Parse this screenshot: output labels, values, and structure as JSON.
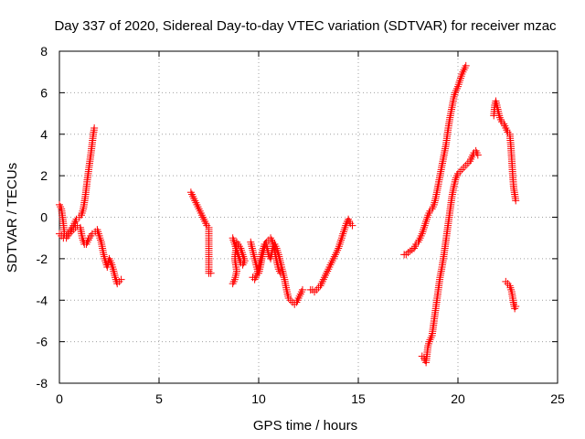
{
  "chart_data": {
    "type": "scatter",
    "title": "Day 337 of 2020, Sidereal Day-to-day VTEC variation (SDTVAR) for receiver mzac",
    "xlabel": "GPS time / hours",
    "ylabel": "SDTVAR / TECUs",
    "xlim": [
      0,
      25
    ],
    "ylim": [
      -8,
      8
    ],
    "xticks": [
      "0",
      "5",
      "10",
      "15",
      "20",
      "25"
    ],
    "yticks": [
      "-8",
      "-6",
      "-4",
      "-2",
      "0",
      "2",
      "4",
      "6",
      "8"
    ],
    "grid": true,
    "marker": "+",
    "color": "#ff0000",
    "series": [
      {
        "name": "seg1a",
        "points": [
          [
            0.0,
            0.6
          ],
          [
            0.1,
            0.4
          ],
          [
            0.2,
            -0.3
          ],
          [
            0.25,
            -0.8
          ],
          [
            0.35,
            -0.9
          ],
          [
            0.5,
            -0.7
          ],
          [
            0.7,
            -0.4
          ],
          [
            0.85,
            -0.1
          ],
          [
            1.0,
            0.0
          ],
          [
            1.1,
            0.1
          ],
          [
            1.2,
            0.4
          ],
          [
            1.3,
            1.0
          ],
          [
            1.4,
            1.8
          ],
          [
            1.5,
            2.5
          ],
          [
            1.6,
            3.2
          ],
          [
            1.7,
            4.0
          ],
          [
            1.75,
            4.3
          ]
        ]
      },
      {
        "name": "seg1b",
        "points": [
          [
            0.0,
            -0.8
          ],
          [
            0.1,
            -0.9
          ],
          [
            0.2,
            -1.0
          ],
          [
            0.35,
            -1.0
          ],
          [
            0.5,
            -0.8
          ],
          [
            0.7,
            -0.6
          ],
          [
            0.9,
            -0.4
          ],
          [
            1.05,
            -0.5
          ],
          [
            1.15,
            -1.0
          ],
          [
            1.25,
            -1.3
          ],
          [
            1.35,
            -1.3
          ],
          [
            1.5,
            -1.0
          ],
          [
            1.65,
            -0.8
          ],
          [
            1.8,
            -0.7
          ]
        ]
      },
      {
        "name": "seg1c",
        "points": [
          [
            1.9,
            -0.6
          ],
          [
            2.0,
            -0.9
          ],
          [
            2.1,
            -1.2
          ],
          [
            2.2,
            -1.7
          ],
          [
            2.3,
            -2.1
          ],
          [
            2.4,
            -2.4
          ],
          [
            2.5,
            -2.0
          ],
          [
            2.6,
            -2.2
          ],
          [
            2.7,
            -2.5
          ],
          [
            2.8,
            -2.9
          ],
          [
            2.9,
            -3.2
          ],
          [
            3.0,
            -3.1
          ],
          [
            3.1,
            -3.0
          ]
        ]
      },
      {
        "name": "seg2",
        "points": [
          [
            6.6,
            1.2
          ],
          [
            6.7,
            1.0
          ],
          [
            6.8,
            0.8
          ],
          [
            6.9,
            0.6
          ],
          [
            7.0,
            0.4
          ],
          [
            7.1,
            0.2
          ],
          [
            7.2,
            0.0
          ],
          [
            7.3,
            -0.2
          ],
          [
            7.4,
            -0.4
          ],
          [
            7.5,
            -0.5
          ],
          [
            7.5,
            -2.7
          ],
          [
            7.6,
            -2.7
          ]
        ]
      },
      {
        "name": "seg3a",
        "points": [
          [
            8.7,
            -1.0
          ],
          [
            8.8,
            -1.3
          ],
          [
            8.9,
            -1.6
          ],
          [
            9.0,
            -1.9
          ],
          [
            9.1,
            -2.2
          ],
          [
            9.2,
            -2.3
          ],
          [
            9.3,
            -2.1
          ],
          [
            9.2,
            -1.8
          ],
          [
            9.1,
            -1.5
          ],
          [
            8.9,
            -1.2
          ],
          [
            8.8,
            -2.0
          ],
          [
            8.9,
            -2.6
          ],
          [
            8.8,
            -3.0
          ],
          [
            8.7,
            -3.2
          ]
        ]
      },
      {
        "name": "seg3b",
        "points": [
          [
            9.6,
            -1.2
          ],
          [
            9.7,
            -1.6
          ],
          [
            9.8,
            -2.0
          ],
          [
            9.9,
            -2.4
          ],
          [
            10.0,
            -2.7
          ],
          [
            10.1,
            -2.3
          ],
          [
            10.2,
            -1.8
          ],
          [
            10.3,
            -1.4
          ],
          [
            10.4,
            -1.2
          ],
          [
            10.5,
            -1.1
          ],
          [
            10.6,
            -1.0
          ],
          [
            10.7,
            -1.2
          ],
          [
            10.8,
            -1.6
          ],
          [
            10.9,
            -2.1
          ],
          [
            11.0,
            -2.5
          ],
          [
            11.1,
            -2.7
          ],
          [
            11.2,
            -2.6
          ]
        ]
      },
      {
        "name": "seg3c",
        "points": [
          [
            9.7,
            -2.9
          ],
          [
            9.8,
            -3.0
          ],
          [
            9.9,
            -2.8
          ],
          [
            10.0,
            -2.4
          ],
          [
            10.1,
            -2.0
          ],
          [
            10.2,
            -1.6
          ],
          [
            10.3,
            -1.3
          ],
          [
            10.4,
            -1.4
          ],
          [
            10.5,
            -1.8
          ],
          [
            10.6,
            -2.0
          ],
          [
            10.7,
            -1.5
          ],
          [
            10.8,
            -1.3
          ],
          [
            10.9,
            -1.5
          ],
          [
            11.0,
            -1.8
          ],
          [
            11.1,
            -2.2
          ],
          [
            11.2,
            -2.6
          ],
          [
            11.3,
            -3.0
          ],
          [
            11.4,
            -3.5
          ],
          [
            11.5,
            -3.9
          ],
          [
            11.6,
            -4.0
          ],
          [
            11.7,
            -4.1
          ],
          [
            11.8,
            -4.2
          ],
          [
            11.9,
            -4.1
          ],
          [
            12.0,
            -3.9
          ],
          [
            12.1,
            -3.7
          ],
          [
            12.2,
            -3.5
          ]
        ]
      },
      {
        "name": "seg4",
        "points": [
          [
            12.6,
            -3.5
          ],
          [
            12.7,
            -3.5
          ],
          [
            12.8,
            -3.6
          ],
          [
            12.9,
            -3.5
          ],
          [
            13.0,
            -3.4
          ],
          [
            13.1,
            -3.3
          ],
          [
            13.2,
            -3.1
          ],
          [
            13.3,
            -2.9
          ],
          [
            13.4,
            -2.7
          ],
          [
            13.5,
            -2.5
          ],
          [
            13.6,
            -2.3
          ],
          [
            13.7,
            -2.1
          ],
          [
            13.8,
            -1.9
          ],
          [
            13.9,
            -1.7
          ],
          [
            14.0,
            -1.5
          ],
          [
            14.1,
            -1.2
          ],
          [
            14.2,
            -0.9
          ],
          [
            14.3,
            -0.6
          ],
          [
            14.4,
            -0.3
          ],
          [
            14.5,
            -0.1
          ],
          [
            14.6,
            -0.3
          ],
          [
            14.7,
            -0.4
          ]
        ]
      },
      {
        "name": "seg5a",
        "points": [
          [
            17.3,
            -1.8
          ],
          [
            17.4,
            -1.8
          ],
          [
            17.5,
            -1.7
          ],
          [
            17.8,
            -1.5
          ],
          [
            17.9,
            -1.3
          ],
          [
            18.0,
            -1.2
          ],
          [
            18.1,
            -1.0
          ],
          [
            18.2,
            -0.8
          ],
          [
            18.3,
            -0.5
          ],
          [
            18.4,
            -0.2
          ],
          [
            18.5,
            0.1
          ],
          [
            18.6,
            0.3
          ],
          [
            18.7,
            0.4
          ],
          [
            18.8,
            0.6
          ],
          [
            18.9,
            1.0
          ],
          [
            19.0,
            1.5
          ],
          [
            19.1,
            2.0
          ],
          [
            19.2,
            2.5
          ],
          [
            19.3,
            3.0
          ],
          [
            19.4,
            3.5
          ],
          [
            19.5,
            4.2
          ],
          [
            19.6,
            4.8
          ],
          [
            19.7,
            5.3
          ],
          [
            19.8,
            5.8
          ],
          [
            19.9,
            6.1
          ],
          [
            20.0,
            6.3
          ],
          [
            20.1,
            6.6
          ],
          [
            20.2,
            6.9
          ],
          [
            20.3,
            7.1
          ],
          [
            20.4,
            7.3
          ]
        ]
      },
      {
        "name": "seg5b",
        "points": [
          [
            18.2,
            -6.7
          ],
          [
            18.3,
            -6.8
          ],
          [
            18.4,
            -7.0
          ],
          [
            18.5,
            -6.2
          ],
          [
            18.6,
            -5.9
          ],
          [
            18.7,
            -5.7
          ],
          [
            18.8,
            -5.0
          ],
          [
            18.9,
            -4.3
          ],
          [
            19.0,
            -3.6
          ],
          [
            19.1,
            -2.9
          ],
          [
            19.2,
            -2.4
          ],
          [
            19.3,
            -1.8
          ],
          [
            19.4,
            -1.1
          ],
          [
            19.5,
            -0.4
          ],
          [
            19.6,
            0.3
          ],
          [
            19.7,
            1.0
          ],
          [
            19.8,
            1.5
          ],
          [
            19.9,
            1.9
          ],
          [
            20.0,
            2.1
          ],
          [
            20.1,
            2.2
          ],
          [
            20.2,
            2.3
          ],
          [
            20.3,
            2.4
          ],
          [
            20.4,
            2.5
          ],
          [
            20.5,
            2.6
          ],
          [
            20.6,
            2.7
          ],
          [
            20.7,
            2.9
          ],
          [
            20.8,
            3.1
          ],
          [
            20.9,
            3.2
          ],
          [
            21.0,
            3.0
          ]
        ]
      },
      {
        "name": "seg6a",
        "points": [
          [
            21.8,
            4.9
          ],
          [
            21.85,
            5.4
          ],
          [
            21.9,
            5.6
          ],
          [
            22.0,
            5.2
          ],
          [
            22.1,
            4.8
          ],
          [
            22.2,
            4.6
          ],
          [
            22.3,
            4.5
          ],
          [
            22.4,
            4.3
          ],
          [
            22.5,
            4.1
          ],
          [
            22.6,
            4.0
          ],
          [
            22.65,
            3.5
          ],
          [
            22.7,
            2.8
          ],
          [
            22.75,
            2.0
          ],
          [
            22.8,
            1.4
          ],
          [
            22.85,
            1.1
          ],
          [
            22.9,
            0.8
          ]
        ]
      },
      {
        "name": "seg6b",
        "points": [
          [
            22.4,
            -3.1
          ],
          [
            22.5,
            -3.2
          ],
          [
            22.6,
            -3.3
          ],
          [
            22.7,
            -3.6
          ],
          [
            22.75,
            -3.9
          ],
          [
            22.8,
            -4.2
          ],
          [
            22.85,
            -4.4
          ],
          [
            22.9,
            -4.3
          ]
        ]
      }
    ]
  }
}
